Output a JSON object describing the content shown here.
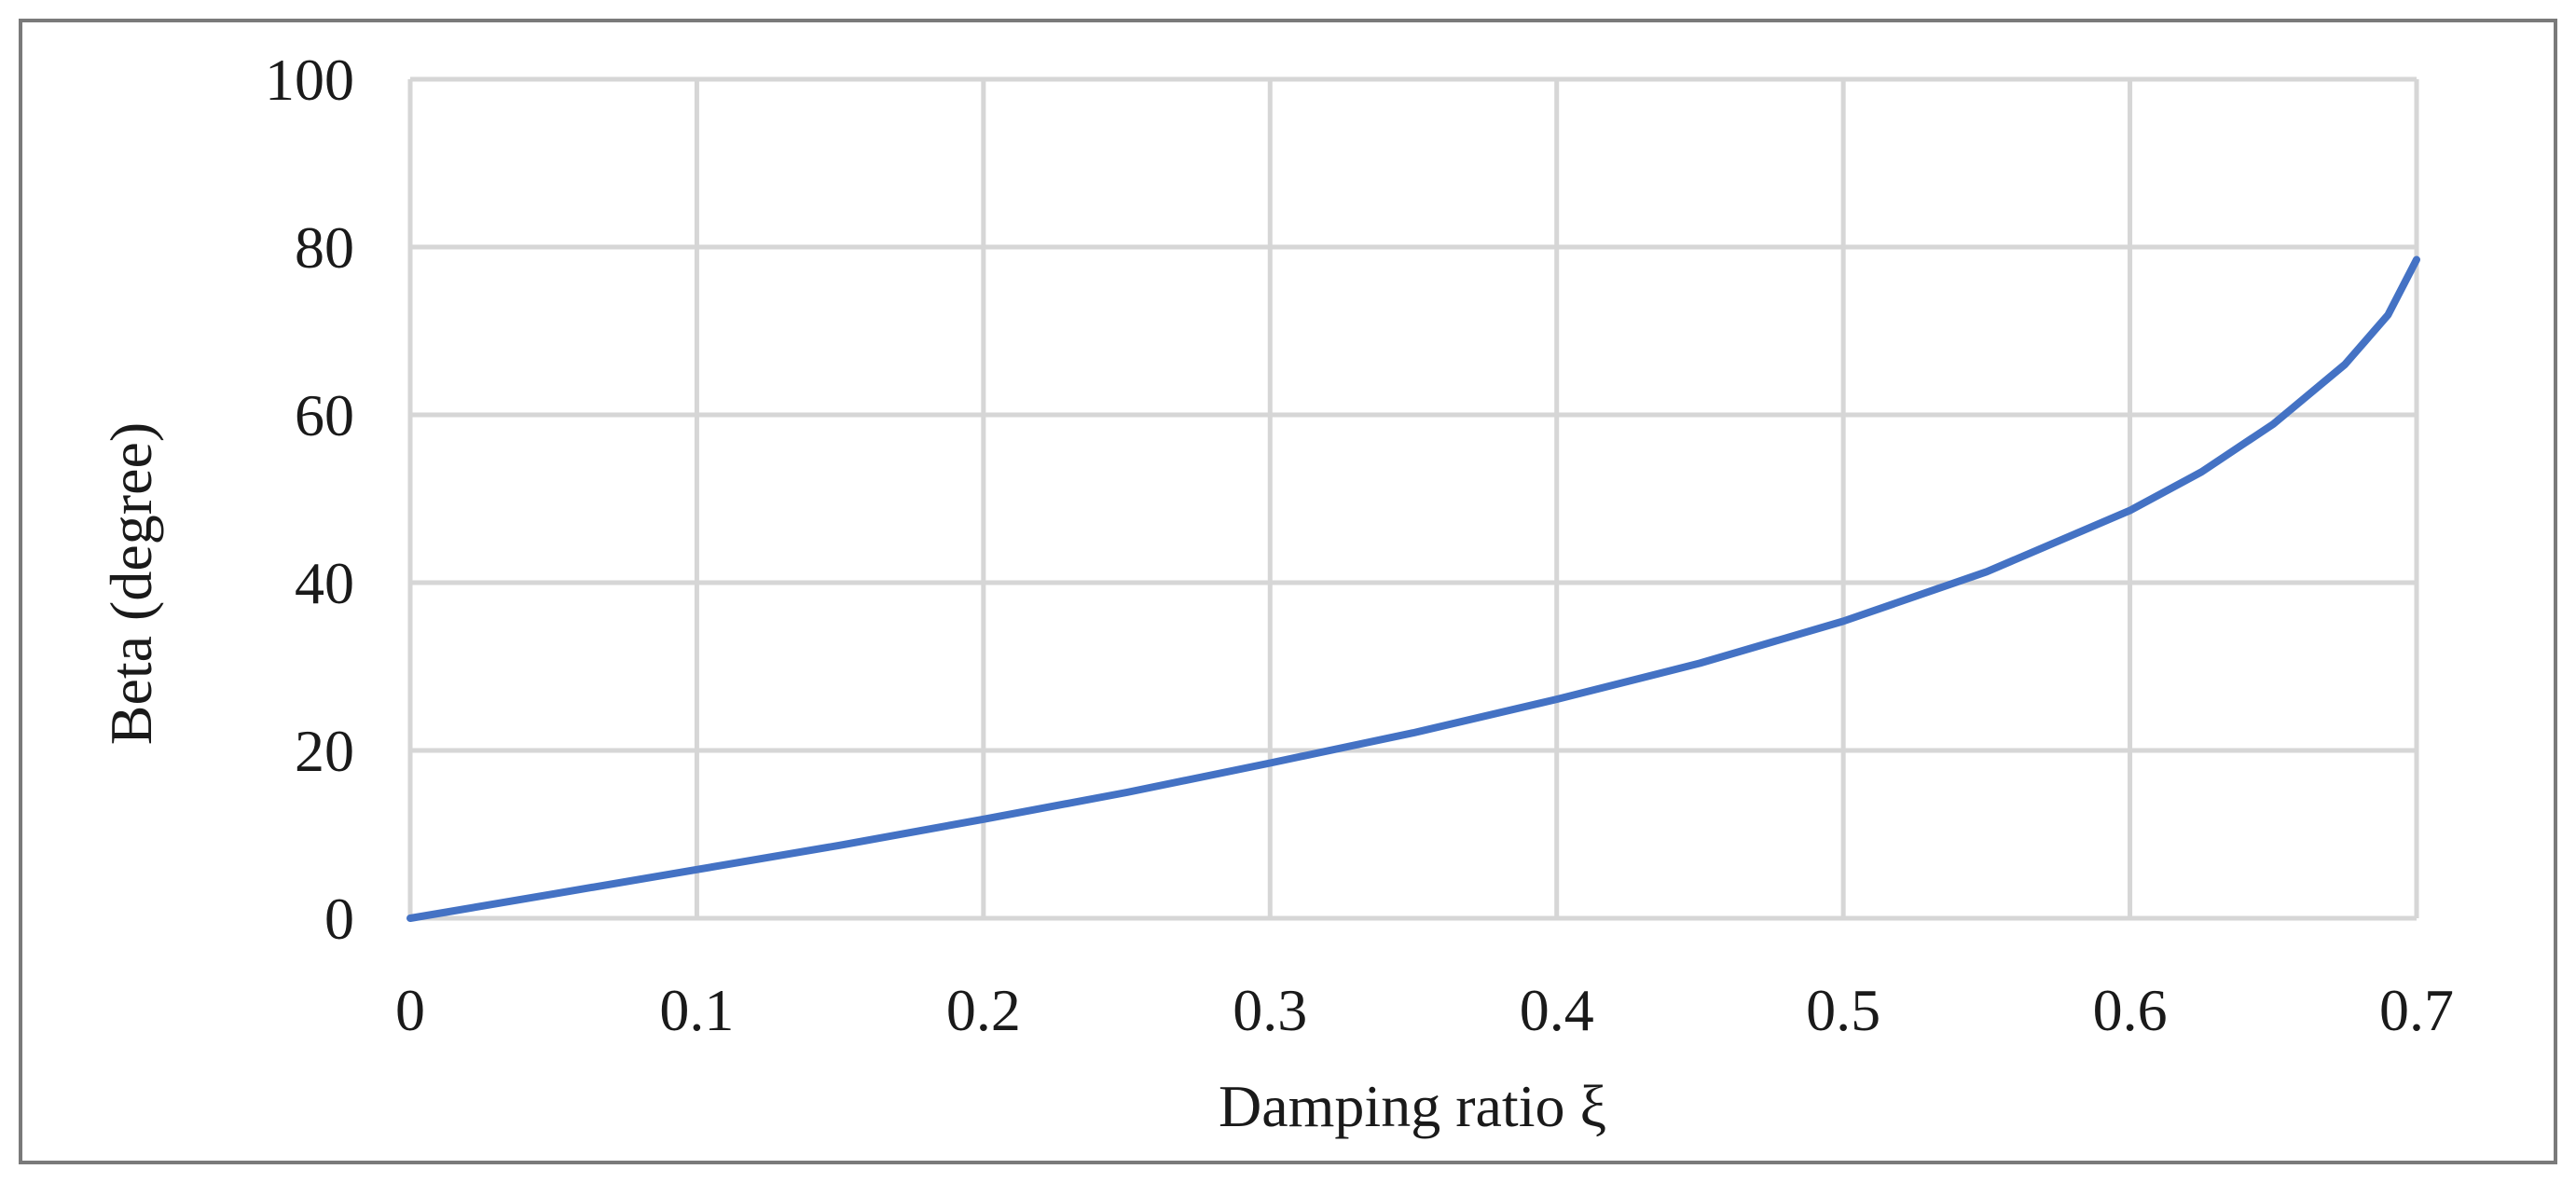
{
  "chart_data": {
    "type": "line",
    "xlabel": "Damping ratio ξ",
    "ylabel": "Beta (degree)",
    "xlim": [
      0,
      0.7
    ],
    "ylim": [
      0,
      100
    ],
    "x_ticks": [
      "0",
      "0.1",
      "0.2",
      "0.3",
      "0.4",
      "0.5",
      "0.6",
      "0.7"
    ],
    "y_ticks": [
      "0",
      "20",
      "40",
      "60",
      "80",
      "100"
    ],
    "grid": true,
    "legend": "none",
    "series": [
      {
        "color": "#4472c4",
        "x": [
          0,
          0.05,
          0.1,
          0.15,
          0.2,
          0.25,
          0.3,
          0.35,
          0.4,
          0.45,
          0.5,
          0.55,
          0.6,
          0.625,
          0.65,
          0.675,
          0.69,
          0.7
        ],
        "y": [
          0,
          2.9,
          5.8,
          8.7,
          11.8,
          15.0,
          18.5,
          22.1,
          26.1,
          30.4,
          35.4,
          41.3,
          48.6,
          53.2,
          58.9,
          66.0,
          71.9,
          78.5
        ]
      }
    ]
  }
}
